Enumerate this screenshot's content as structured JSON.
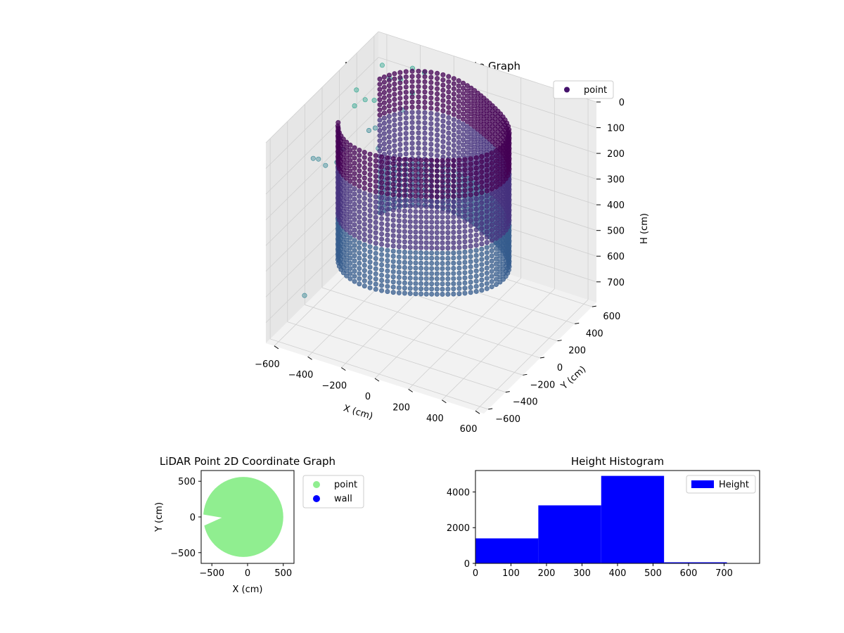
{
  "chart_data": [
    {
      "type": "scatter",
      "projection": "3d",
      "title": "LiDAR Point 3D Coordinate Graph",
      "xlabel": "X (cm)",
      "ylabel": "Y (cm)",
      "zlabel": "H (cm)",
      "xlim": [
        -650,
        650
      ],
      "ylim": [
        -650,
        650
      ],
      "zlim": [
        0,
        780
      ],
      "z_inverted": true,
      "x_ticks": [
        -600,
        -400,
        -200,
        0,
        200,
        400,
        600
      ],
      "y_ticks": [
        -600,
        -400,
        -200,
        0,
        200,
        400,
        600
      ],
      "z_ticks": [
        0,
        100,
        200,
        300,
        400,
        500,
        600,
        700
      ],
      "grid": true,
      "legend": {
        "placement": "top-right",
        "entries": [
          "point"
        ]
      },
      "colormap": "viridis",
      "series": [
        {
          "name": "point",
          "description_shape": "cylindrical wall of radius ~480 cm around center (-50, 0) spanning heights 0-520 cm, with a gap on the -X side and scattered outliers",
          "wall": {
            "center": [
              -50,
              0
            ],
            "radius": 480,
            "h_range": [
              0,
              520
            ],
            "gap_deg": [
              150,
              215
            ]
          },
          "outliers": [
            [
              -600,
              -200,
              200
            ],
            [
              -620,
              -100,
              240
            ],
            [
              -560,
              200,
              120
            ],
            [
              -600,
              300,
              100
            ],
            [
              -520,
              350,
              140
            ],
            [
              -480,
              450,
              80
            ],
            [
              -550,
              500,
              60
            ],
            [
              -610,
              420,
              180
            ],
            [
              -450,
              520,
              100
            ],
            [
              -400,
              560,
              60
            ],
            [
              -500,
              250,
              220
            ],
            [
              -580,
              100,
              260
            ],
            [
              -630,
              0,
              300
            ],
            [
              -600,
              -300,
              700
            ],
            [
              -640,
              150,
              340
            ],
            [
              -530,
              380,
              260
            ],
            [
              -470,
              300,
              300
            ],
            [
              -420,
              480,
              200
            ],
            [
              -380,
              520,
              140
            ],
            [
              -350,
              600,
              80
            ]
          ]
        }
      ]
    },
    {
      "type": "scatter",
      "title": "LiDAR Point 2D Coordinate Graph",
      "xlabel": "X (cm)",
      "ylabel": "Y (cm)",
      "xlim": [
        -650,
        650
      ],
      "ylim": [
        -650,
        650
      ],
      "x_ticks": [
        -500,
        0,
        500
      ],
      "y_ticks": [
        -500,
        0,
        500
      ],
      "legend": {
        "placement": "outside-right",
        "entries": [
          "point",
          "wall"
        ]
      },
      "series": [
        {
          "name": "point",
          "color": "#90ee90",
          "shape": "filled disk radius ~560 centered at (-50, 0), clipped by axes, notch on -X side near y=-50"
        },
        {
          "name": "wall",
          "color": "#0000ff",
          "points": []
        }
      ]
    },
    {
      "type": "bar",
      "subtype": "histogram",
      "title": "Height Histogram",
      "xlim": [
        0,
        800
      ],
      "ylim": [
        0,
        5200
      ],
      "x_ticks": [
        0,
        100,
        200,
        300,
        400,
        500,
        600,
        700
      ],
      "y_ticks": [
        0,
        2000,
        4000
      ],
      "legend": {
        "placement": "top-right",
        "entries": [
          "Height"
        ]
      },
      "color": "#0000ff",
      "bins": [
        {
          "x0": 0,
          "x1": 177,
          "value": 1400
        },
        {
          "x0": 177,
          "x1": 354,
          "value": 3250
        },
        {
          "x0": 354,
          "x1": 531,
          "value": 4900
        },
        {
          "x0": 531,
          "x1": 708,
          "value": 60
        },
        {
          "x0": 708,
          "x1": 800,
          "value": 20
        }
      ],
      "series": [
        {
          "name": "Height"
        }
      ]
    }
  ]
}
